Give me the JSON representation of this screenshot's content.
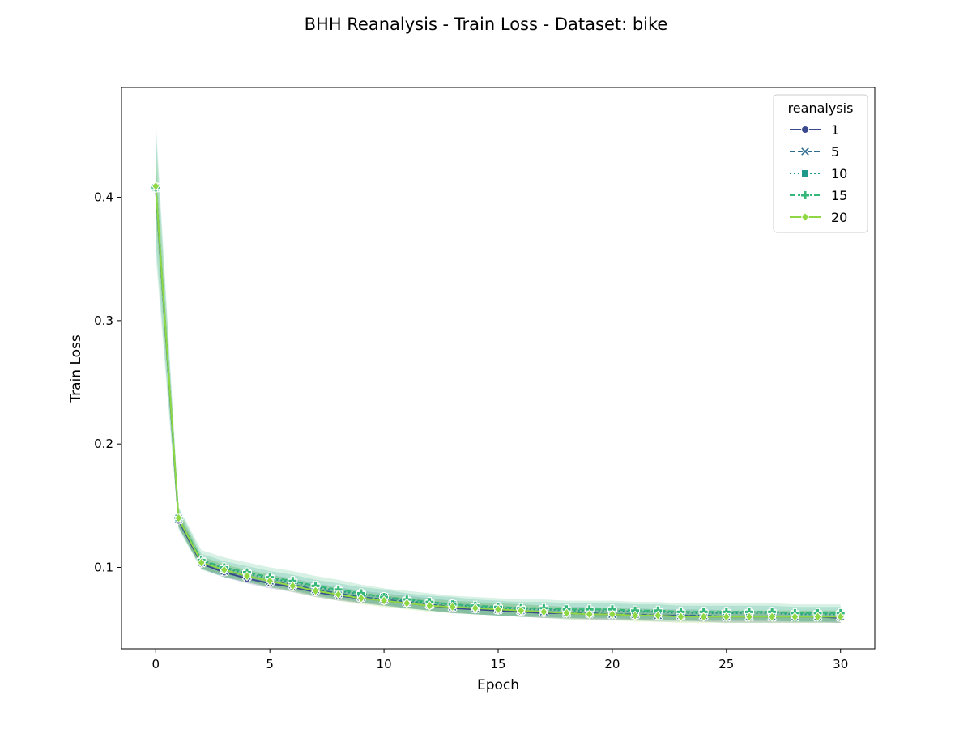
{
  "chart_data": {
    "type": "line",
    "title": "BHH Reanalysis - Train Loss - Dataset: bike",
    "xlabel": "Epoch",
    "ylabel": "Train Loss",
    "xlim": [
      -1.5,
      31.5
    ],
    "ylim": [
      0.034,
      0.489
    ],
    "xticks": [
      "0",
      "5",
      "10",
      "15",
      "20",
      "25",
      "30"
    ],
    "yticks": [
      "0.1",
      "0.2",
      "0.3",
      "0.4"
    ],
    "grid": false,
    "legend": {
      "title": "reanalysis",
      "placement": "top-right"
    },
    "x": [
      0,
      1,
      2,
      3,
      4,
      5,
      6,
      7,
      8,
      9,
      10,
      11,
      12,
      13,
      14,
      15,
      16,
      17,
      18,
      19,
      20,
      21,
      22,
      23,
      24,
      25,
      26,
      27,
      28,
      29,
      30
    ],
    "series": [
      {
        "name": "1",
        "color": "#3b4a8c",
        "marker": "circle",
        "dash": "solid",
        "values": [
          0.407,
          0.138,
          0.103,
          0.096,
          0.091,
          0.087,
          0.084,
          0.08,
          0.077,
          0.075,
          0.073,
          0.071,
          0.069,
          0.067,
          0.066,
          0.065,
          0.064,
          0.063,
          0.063,
          0.062,
          0.062,
          0.061,
          0.061,
          0.061,
          0.06,
          0.06,
          0.06,
          0.06,
          0.06,
          0.06,
          0.059
        ],
        "band": [
          0.012,
          0.005,
          0.004,
          0.004,
          0.004,
          0.004,
          0.004,
          0.004,
          0.004,
          0.004,
          0.004,
          0.004,
          0.004,
          0.004,
          0.004,
          0.004,
          0.004,
          0.004,
          0.004,
          0.004,
          0.004,
          0.004,
          0.004,
          0.004,
          0.004,
          0.004,
          0.004,
          0.004,
          0.004,
          0.004,
          0.004
        ]
      },
      {
        "name": "5",
        "color": "#2f6b8e",
        "marker": "x",
        "dash": "dashed",
        "values": [
          0.408,
          0.139,
          0.104,
          0.097,
          0.093,
          0.089,
          0.086,
          0.082,
          0.079,
          0.076,
          0.074,
          0.072,
          0.07,
          0.068,
          0.067,
          0.066,
          0.065,
          0.064,
          0.063,
          0.063,
          0.062,
          0.062,
          0.061,
          0.061,
          0.061,
          0.06,
          0.06,
          0.06,
          0.06,
          0.06,
          0.06
        ],
        "band": [
          0.02,
          0.006,
          0.005,
          0.005,
          0.005,
          0.005,
          0.005,
          0.005,
          0.005,
          0.005,
          0.005,
          0.005,
          0.005,
          0.005,
          0.005,
          0.005,
          0.005,
          0.005,
          0.005,
          0.005,
          0.005,
          0.005,
          0.005,
          0.005,
          0.005,
          0.005,
          0.005,
          0.005,
          0.005,
          0.005,
          0.005
        ]
      },
      {
        "name": "10",
        "color": "#1f9a8a",
        "marker": "square",
        "dash": "dotted",
        "values": [
          0.408,
          0.14,
          0.105,
          0.099,
          0.095,
          0.091,
          0.088,
          0.084,
          0.081,
          0.078,
          0.076,
          0.073,
          0.071,
          0.07,
          0.068,
          0.067,
          0.066,
          0.066,
          0.065,
          0.065,
          0.065,
          0.064,
          0.064,
          0.063,
          0.063,
          0.063,
          0.063,
          0.063,
          0.062,
          0.062,
          0.062
        ],
        "band": [
          0.045,
          0.008,
          0.006,
          0.006,
          0.006,
          0.006,
          0.006,
          0.006,
          0.006,
          0.006,
          0.006,
          0.006,
          0.006,
          0.006,
          0.006,
          0.006,
          0.006,
          0.006,
          0.006,
          0.006,
          0.006,
          0.006,
          0.006,
          0.006,
          0.006,
          0.006,
          0.006,
          0.006,
          0.006,
          0.006,
          0.006
        ]
      },
      {
        "name": "15",
        "color": "#35b779",
        "marker": "plus",
        "dash": "dashed",
        "values": [
          0.408,
          0.14,
          0.106,
          0.1,
          0.096,
          0.092,
          0.089,
          0.085,
          0.082,
          0.079,
          0.076,
          0.074,
          0.072,
          0.07,
          0.069,
          0.068,
          0.067,
          0.067,
          0.066,
          0.066,
          0.066,
          0.065,
          0.065,
          0.064,
          0.064,
          0.064,
          0.064,
          0.064,
          0.063,
          0.063,
          0.063
        ],
        "band": [
          0.055,
          0.009,
          0.008,
          0.008,
          0.008,
          0.008,
          0.008,
          0.008,
          0.008,
          0.007,
          0.007,
          0.007,
          0.007,
          0.007,
          0.007,
          0.007,
          0.007,
          0.007,
          0.007,
          0.007,
          0.007,
          0.007,
          0.007,
          0.007,
          0.007,
          0.007,
          0.007,
          0.007,
          0.007,
          0.007,
          0.007
        ]
      },
      {
        "name": "20",
        "color": "#8fd744",
        "marker": "diamond",
        "dash": "solid",
        "values": [
          0.409,
          0.14,
          0.104,
          0.098,
          0.093,
          0.089,
          0.085,
          0.081,
          0.078,
          0.075,
          0.073,
          0.071,
          0.069,
          0.068,
          0.067,
          0.066,
          0.065,
          0.064,
          0.063,
          0.062,
          0.062,
          0.061,
          0.061,
          0.06,
          0.06,
          0.06,
          0.06,
          0.06,
          0.06,
          0.06,
          0.06
        ],
        "band": [
          0.03,
          0.007,
          0.005,
          0.005,
          0.005,
          0.005,
          0.005,
          0.005,
          0.005,
          0.005,
          0.005,
          0.005,
          0.005,
          0.005,
          0.005,
          0.005,
          0.005,
          0.005,
          0.005,
          0.005,
          0.005,
          0.005,
          0.005,
          0.005,
          0.005,
          0.005,
          0.005,
          0.005,
          0.005,
          0.005,
          0.005
        ]
      }
    ]
  }
}
